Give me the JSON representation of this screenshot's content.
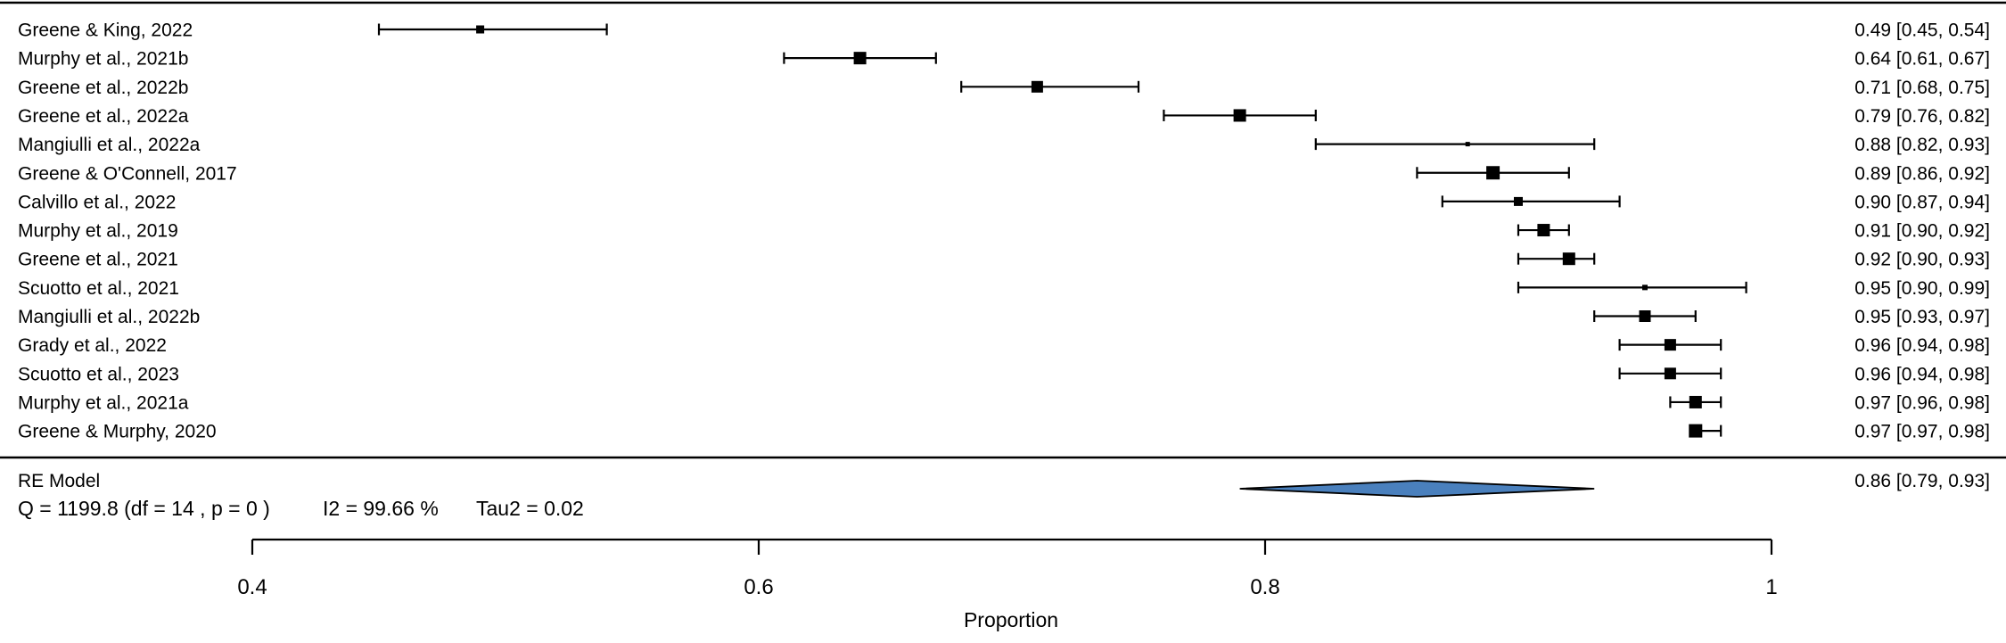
{
  "chart_data": {
    "type": "forest",
    "title": "",
    "xlabel": "Proportion",
    "axis_range": [
      0.4,
      1.0
    ],
    "x_tick_values": [
      0.4,
      0.6,
      0.8,
      1.0
    ],
    "x_tick_labels": [
      "0.4",
      "0.6",
      "0.8",
      "1"
    ],
    "grid": false,
    "studies": [
      {
        "label": "Greene & King, 2022",
        "estimate": 0.49,
        "ci_low": 0.45,
        "ci_high": 0.54,
        "annotation": "0.49 [0.45, 0.54]",
        "marker_size": 9
      },
      {
        "label": "Murphy et al., 2021b",
        "estimate": 0.64,
        "ci_low": 0.61,
        "ci_high": 0.67,
        "annotation": "0.64 [0.61, 0.67]",
        "marker_size": 14
      },
      {
        "label": "Greene et al., 2022b",
        "estimate": 0.71,
        "ci_low": 0.68,
        "ci_high": 0.75,
        "annotation": "0.71 [0.68, 0.75]",
        "marker_size": 13
      },
      {
        "label": "Greene et al., 2022a",
        "estimate": 0.79,
        "ci_low": 0.76,
        "ci_high": 0.82,
        "annotation": "0.79 [0.76, 0.82]",
        "marker_size": 14
      },
      {
        "label": "Mangiulli et al., 2022a",
        "estimate": 0.88,
        "ci_low": 0.82,
        "ci_high": 0.93,
        "annotation": "0.88 [0.82, 0.93]",
        "marker_size": 5
      },
      {
        "label": "Greene & O'Connell, 2017",
        "estimate": 0.89,
        "ci_low": 0.86,
        "ci_high": 0.92,
        "annotation": "0.89 [0.86, 0.92]",
        "marker_size": 15
      },
      {
        "label": "Calvillo et al., 2022",
        "estimate": 0.9,
        "ci_low": 0.87,
        "ci_high": 0.94,
        "annotation": "0.90 [0.87, 0.94]",
        "marker_size": 10
      },
      {
        "label": "Murphy et al., 2019",
        "estimate": 0.91,
        "ci_low": 0.9,
        "ci_high": 0.92,
        "annotation": "0.91 [0.90, 0.92]",
        "marker_size": 14
      },
      {
        "label": "Greene et al., 2021",
        "estimate": 0.92,
        "ci_low": 0.9,
        "ci_high": 0.93,
        "annotation": "0.92 [0.90, 0.93]",
        "marker_size": 14
      },
      {
        "label": "Scuotto et al., 2021",
        "estimate": 0.95,
        "ci_low": 0.9,
        "ci_high": 0.99,
        "annotation": "0.95 [0.90, 0.99]",
        "marker_size": 6
      },
      {
        "label": "Mangiulli et al., 2022b",
        "estimate": 0.95,
        "ci_low": 0.93,
        "ci_high": 0.97,
        "annotation": "0.95 [0.93, 0.97]",
        "marker_size": 13
      },
      {
        "label": "Grady et al., 2022",
        "estimate": 0.96,
        "ci_low": 0.94,
        "ci_high": 0.98,
        "annotation": "0.96 [0.94, 0.98]",
        "marker_size": 13
      },
      {
        "label": "Scuotto et al., 2023",
        "estimate": 0.96,
        "ci_low": 0.94,
        "ci_high": 0.98,
        "annotation": "0.96 [0.94, 0.98]",
        "marker_size": 13
      },
      {
        "label": "Murphy et al., 2021a",
        "estimate": 0.97,
        "ci_low": 0.96,
        "ci_high": 0.98,
        "annotation": "0.97 [0.96, 0.98]",
        "marker_size": 14
      },
      {
        "label": "Greene & Murphy, 2020",
        "estimate": 0.97,
        "ci_low": 0.97,
        "ci_high": 0.98,
        "annotation": "0.97 [0.97, 0.98]",
        "marker_size": 15
      }
    ],
    "summary": {
      "label": "RE Model",
      "estimate": 0.86,
      "ci_low": 0.79,
      "ci_high": 0.93,
      "annotation": "0.86 [0.79, 0.93]"
    },
    "heterogeneity": {
      "q": "Q = 1199.8 (df = 14 , p = 0 )",
      "i2": "I2 = 99.66 %",
      "tau2": "Tau2 = 0.02"
    },
    "legend": null,
    "colors": {
      "marker": "#000000",
      "line": "#000000",
      "text": "#000000",
      "diamond_fill": "#4a80bd",
      "diamond_stroke": "#000000",
      "background": "#ffffff"
    }
  }
}
